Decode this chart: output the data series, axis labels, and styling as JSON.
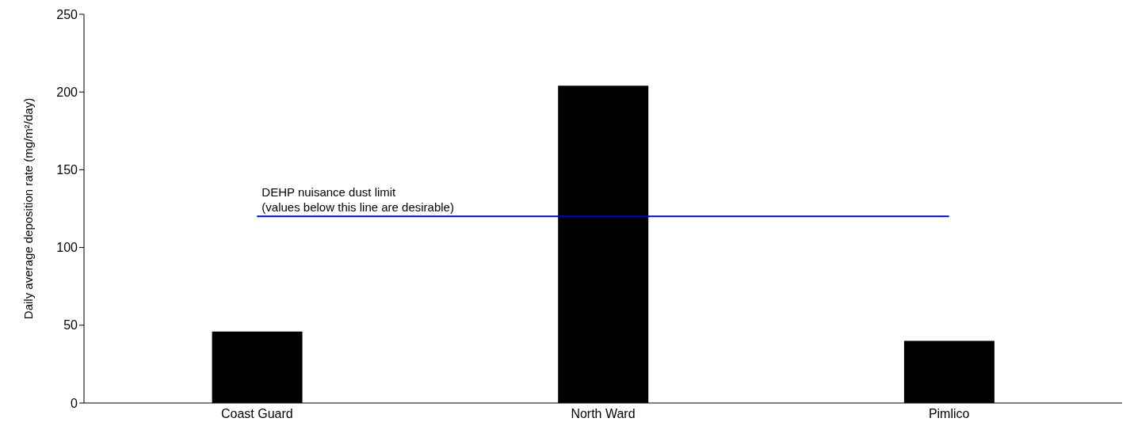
{
  "chart_data": {
    "type": "bar",
    "ylabel": "Daily average deposition rate (mg/m²/day)",
    "categories": [
      "Coast Guard",
      "North Ward",
      "Pimlico"
    ],
    "values": [
      46,
      204,
      40
    ],
    "color": "#000000",
    "ylim": [
      0,
      250
    ],
    "yticks": [
      0,
      50,
      100,
      150,
      200,
      250
    ],
    "grid": false,
    "legend": false,
    "ref_lines": [
      {
        "axis": "y",
        "value": 120,
        "label": "DEHP nuisance dust limit\n(values below this line are desirable)",
        "color": "#0000cc"
      }
    ]
  }
}
